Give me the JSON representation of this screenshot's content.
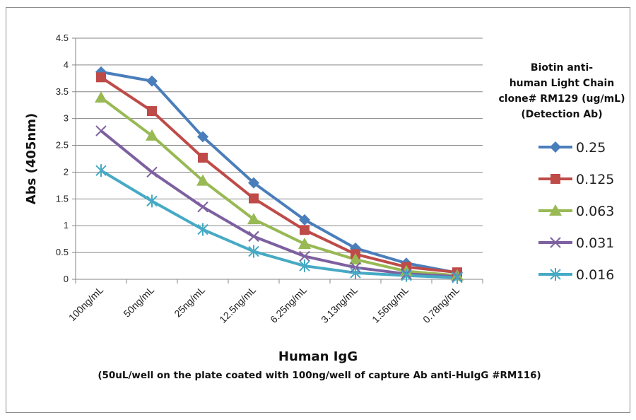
{
  "chart_data": {
    "type": "line",
    "categories": [
      "100ng/mL",
      "50ng/mL",
      "25ng/mL",
      "12.5ng/mL",
      "6.25ng/mL",
      "3.13ng/mL",
      "1.56ng/mL",
      "0.78ng/mL"
    ],
    "xlabel": "Human IgG",
    "xlabel_sub": "(50uL/well on the plate coated with 100ng/well of capture Ab anti-HuIgG #RM116)",
    "ylabel": "Abs (405nm)",
    "ylim": [
      0,
      4.5
    ],
    "yticks": [
      "0",
      "0.5",
      "1",
      "1.5",
      "2",
      "2.5",
      "3",
      "3.5",
      "4",
      "4.5"
    ],
    "grid": true,
    "legend_title": [
      "Biotin anti-",
      "human Light Chain",
      "clone# RM129 (ug/mL)",
      "(Detection Ab)"
    ],
    "legend_position": "right",
    "series": [
      {
        "name": "0.25",
        "color": "#4a7ebb",
        "marker": "diamond",
        "values": [
          3.87,
          3.7,
          2.66,
          1.8,
          1.11,
          0.58,
          0.3,
          0.12
        ]
      },
      {
        "name": "0.125",
        "color": "#be4b48",
        "marker": "square",
        "values": [
          3.77,
          3.14,
          2.27,
          1.51,
          0.92,
          0.47,
          0.23,
          0.13
        ]
      },
      {
        "name": "0.063",
        "color": "#98b954",
        "marker": "triangle",
        "values": [
          3.39,
          2.68,
          1.84,
          1.12,
          0.66,
          0.37,
          0.15,
          0.07
        ]
      },
      {
        "name": "0.031",
        "color": "#7d60a0",
        "marker": "x",
        "values": [
          2.77,
          2.0,
          1.35,
          0.8,
          0.43,
          0.22,
          0.1,
          0.05
        ]
      },
      {
        "name": "0.016",
        "color": "#46aac5",
        "marker": "star",
        "values": [
          2.03,
          1.46,
          0.93,
          0.52,
          0.25,
          0.12,
          0.07,
          0.03
        ]
      }
    ]
  }
}
